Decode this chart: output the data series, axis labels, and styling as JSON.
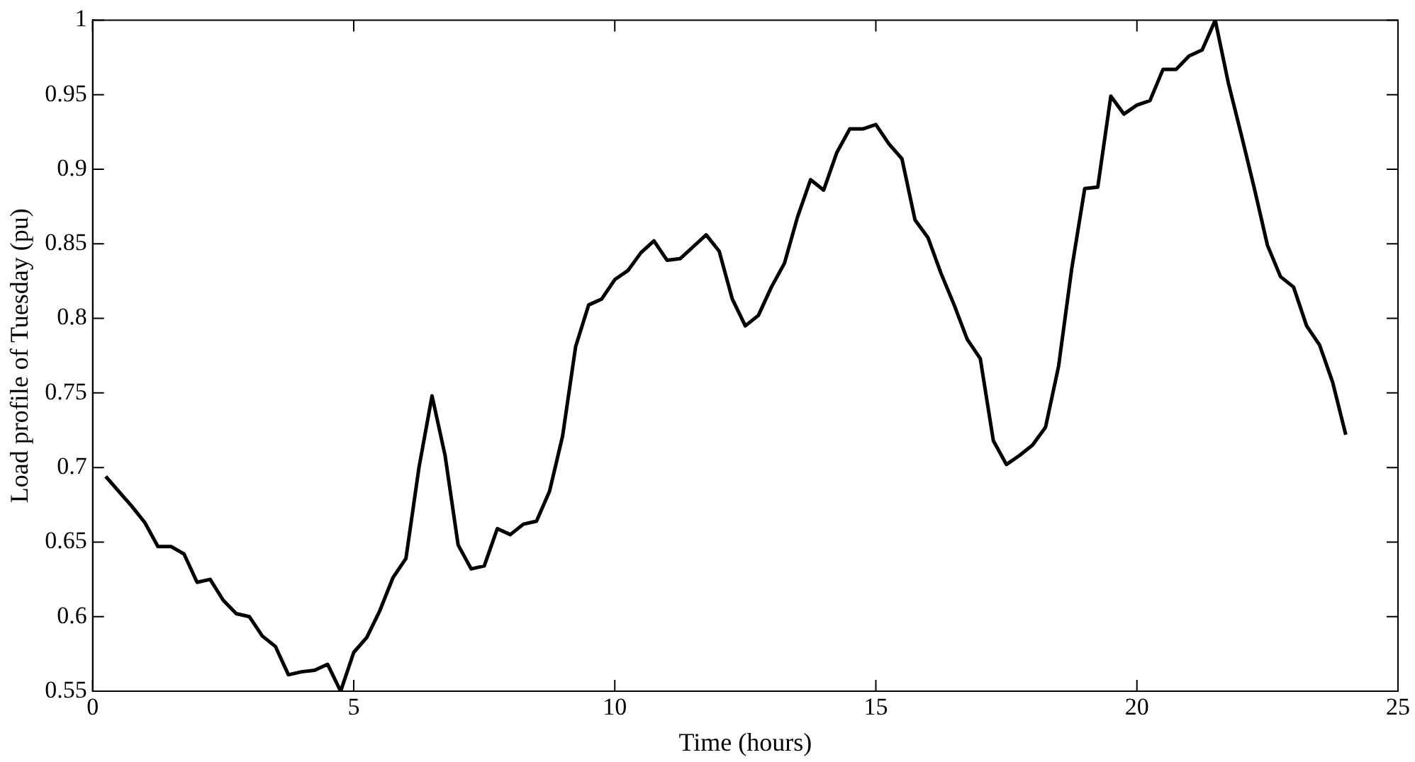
{
  "chart_data": {
    "type": "line",
    "xlabel": "Time (hours)",
    "ylabel": "Load profile of Tuesday (pu)",
    "xlim": [
      0,
      25
    ],
    "xticks": [
      0,
      5,
      10,
      15,
      20,
      25
    ],
    "ylim": [
      0.55,
      1
    ],
    "yticks": [
      0.55,
      0.6,
      0.65,
      0.7,
      0.75,
      0.8,
      0.85,
      0.9,
      0.95,
      1
    ],
    "grid": false,
    "marker": "none",
    "line_style": "solid",
    "color": "#000000",
    "x": [
      0.25,
      0.5,
      0.75,
      1,
      1.25,
      1.5,
      1.75,
      2,
      2.25,
      2.5,
      2.75,
      3,
      3.25,
      3.5,
      3.75,
      4,
      4.25,
      4.5,
      4.75,
      5,
      5.25,
      5.5,
      5.75,
      6,
      6.25,
      6.5,
      6.75,
      7,
      7.25,
      7.5,
      7.75,
      8,
      8.25,
      8.5,
      8.75,
      9,
      9.25,
      9.5,
      9.75,
      10,
      10.25,
      10.5,
      10.75,
      11,
      11.25,
      11.5,
      11.75,
      12,
      12.25,
      12.5,
      12.75,
      13,
      13.25,
      13.5,
      13.75,
      14,
      14.25,
      14.5,
      14.75,
      15,
      15.25,
      15.5,
      15.75,
      16,
      16.25,
      16.5,
      16.75,
      17,
      17.25,
      17.5,
      17.75,
      18,
      18.25,
      18.5,
      18.75,
      19,
      19.25,
      19.5,
      19.75,
      20,
      20.25,
      20.5,
      20.75,
      21,
      21.25,
      21.5,
      21.75,
      22,
      22.25,
      22.5,
      22.75,
      23,
      23.25,
      23.5,
      23.75,
      24
    ],
    "values": [
      0.694,
      0.684,
      0.674,
      0.663,
      0.647,
      0.647,
      0.642,
      0.623,
      0.625,
      0.611,
      0.602,
      0.6,
      0.587,
      0.58,
      0.561,
      0.563,
      0.564,
      0.568,
      0.55,
      0.576,
      0.586,
      0.604,
      0.626,
      0.639,
      0.7,
      0.748,
      0.708,
      0.648,
      0.632,
      0.634,
      0.659,
      0.655,
      0.662,
      0.664,
      0.684,
      0.721,
      0.781,
      0.809,
      0.813,
      0.826,
      0.832,
      0.844,
      0.852,
      0.839,
      0.84,
      0.848,
      0.856,
      0.845,
      0.813,
      0.795,
      0.802,
      0.821,
      0.837,
      0.868,
      0.893,
      0.886,
      0.911,
      0.927,
      0.927,
      0.93,
      0.917,
      0.907,
      0.866,
      0.854,
      0.83,
      0.809,
      0.786,
      0.773,
      0.718,
      0.702,
      0.708,
      0.715,
      0.727,
      0.768,
      0.833,
      0.887,
      0.888,
      0.949,
      0.937,
      0.943,
      0.946,
      0.967,
      0.967,
      0.976,
      0.98,
      1.0,
      0.958,
      0.923,
      0.887,
      0.849,
      0.828,
      0.821,
      0.795,
      0.782,
      0.757,
      0.722
    ]
  }
}
